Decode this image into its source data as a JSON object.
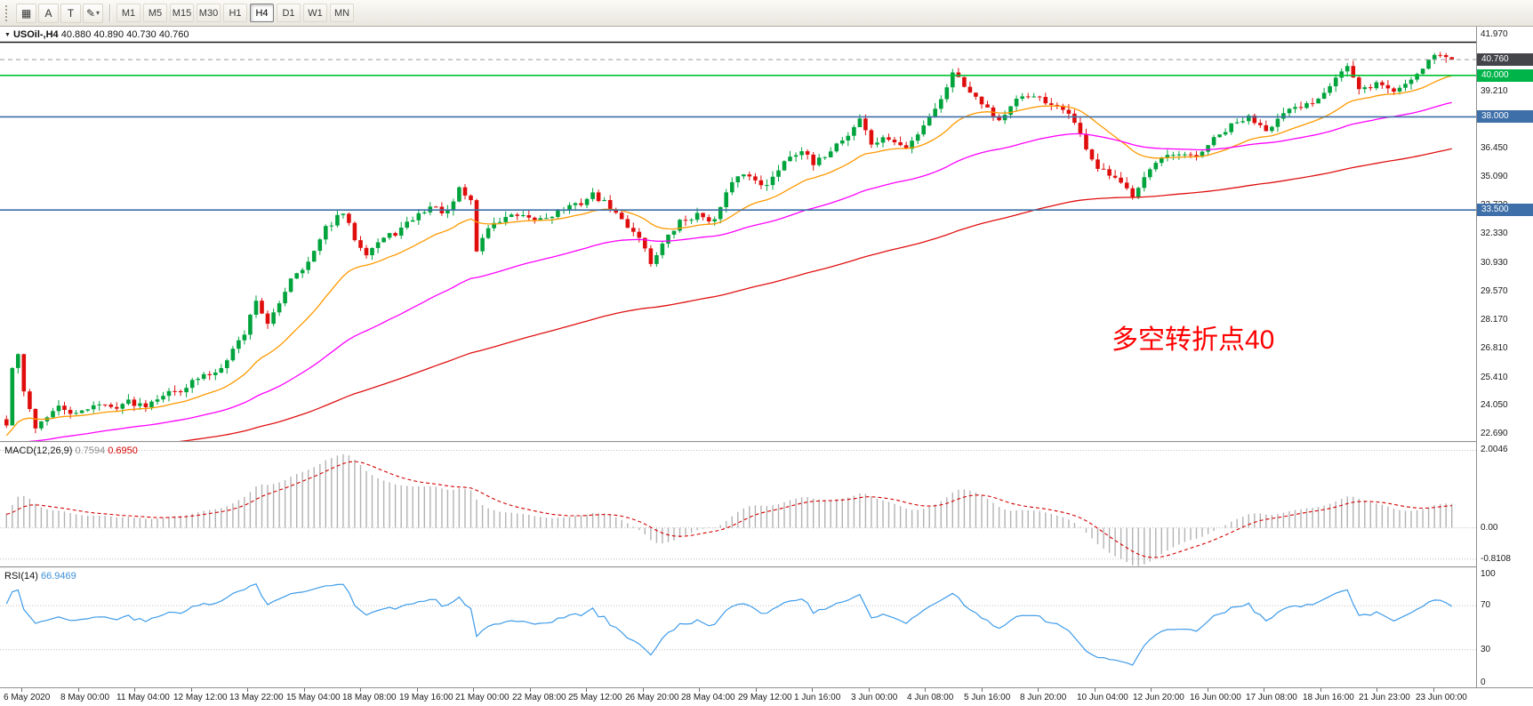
{
  "toolbar": {
    "buttons": [
      {
        "name": "chart-type-button",
        "glyph": "▦",
        "dropdown": false
      },
      {
        "name": "cursor-arrow-button",
        "glyph": "A",
        "dropdown": false
      },
      {
        "name": "text-label-button",
        "glyph": "T",
        "dropdown": false
      },
      {
        "name": "draw-tools-button",
        "glyph": "✎",
        "dropdown": true
      }
    ],
    "timeframes": [
      "M1",
      "M5",
      "M15",
      "M30",
      "H1",
      "H4",
      "D1",
      "W1",
      "MN"
    ],
    "active_timeframe": "H4"
  },
  "chart": {
    "title": "USOil-,H4",
    "ohlc": "40.880 40.890 40.730 40.760",
    "annotation": "多空转折点40",
    "annotation_color": "#ff0000"
  },
  "price_axis": {
    "ticks": [
      {
        "label": "41.970",
        "value": 41.97
      },
      {
        "label": "39.210",
        "value": 39.21
      },
      {
        "label": "37.850",
        "value": 37.85
      },
      {
        "label": "36.450",
        "value": 36.45
      },
      {
        "label": "35.090",
        "value": 35.09
      },
      {
        "label": "33.730",
        "value": 33.73
      },
      {
        "label": "32.330",
        "value": 32.33
      },
      {
        "label": "30.930",
        "value": 30.93
      },
      {
        "label": "29.570",
        "value": 29.57
      },
      {
        "label": "28.170",
        "value": 28.17
      },
      {
        "label": "26.810",
        "value": 26.81
      },
      {
        "label": "25.410",
        "value": 25.41
      },
      {
        "label": "24.050",
        "value": 24.05
      },
      {
        "label": "22.690",
        "value": 22.69
      }
    ],
    "badges": [
      {
        "value": "40.760",
        "price": 40.76,
        "bg": "#43454a",
        "type": "last-price"
      },
      {
        "value": "40.000",
        "price": 40.0,
        "bg": "#00b44a",
        "type": "hline"
      },
      {
        "value": "38.000",
        "price": 38.0,
        "bg": "#3e6fa8",
        "type": "hline"
      },
      {
        "value": "33.500",
        "price": 33.5,
        "bg": "#3e6fa8",
        "type": "hline"
      }
    ]
  },
  "hlines": [
    {
      "price": 41.6,
      "color": "#1c1c1c",
      "width": 1.4,
      "style": "solid"
    },
    {
      "price": 40.0,
      "color": "#00c235",
      "width": 1.6,
      "style": "solid"
    },
    {
      "price": 38.0,
      "color": "#3e6fa8",
      "width": 1.6,
      "style": "solid"
    },
    {
      "price": 33.5,
      "color": "#3e6fa8",
      "width": 1.6,
      "style": "solid"
    },
    {
      "price": 40.76,
      "color": "#9a9a9a",
      "width": 1.0,
      "style": "dashed"
    }
  ],
  "indicators": {
    "macd": {
      "label": "MACD(12,26,9)",
      "value_main": "0.7594",
      "value_signal": "0.6950",
      "levels": [
        2.0046,
        0,
        -0.8108
      ],
      "axis_labels": [
        "2.0046",
        "0.00",
        "-0.8108"
      ]
    },
    "rsi": {
      "label": "RSI(14)",
      "value": "66.9469",
      "levels": [
        70,
        30
      ],
      "axis_levels": [
        100,
        70,
        30,
        0
      ],
      "axis_labels": [
        "100",
        "70",
        "30",
        "0"
      ]
    }
  },
  "time_axis": {
    "labels": [
      "6 May 2020",
      "8 May 00:00",
      "11 May 04:00",
      "12 May 12:00",
      "13 May 22:00",
      "15 May 04:00",
      "18 May 08:00",
      "19 May 16:00",
      "21 May 00:00",
      "22 May 08:00",
      "25 May 12:00",
      "26 May 20:00",
      "28 May 04:00",
      "29 May 12:00",
      "1 Jun 16:00",
      "3 Jun 00:00",
      "4 Jun 08:00",
      "5 Jun 16:00",
      "8 Jun 20:00",
      "10 Jun 04:00",
      "12 Jun 20:00",
      "16 Jun 00:00",
      "17 Jun 08:00",
      "18 Jun 16:00",
      "21 Jun 23:00",
      "23 Jun 00:00"
    ]
  },
  "chart_data": {
    "type": "candlestick+indicators",
    "symbol": "USOil",
    "timeframe": "H4",
    "title": "USOil-,H4 40.880 40.890 40.730 40.760",
    "last_ohlc": {
      "open": 40.88,
      "high": 40.89,
      "low": 40.73,
      "close": 40.76
    },
    "price_range": {
      "min": 22.35,
      "max": 42.35
    },
    "candle_count": 250,
    "colors": {
      "up": "#00a33c",
      "down": "#e00d0d",
      "macd_bars": "#b2b2b2",
      "macd_signal": "#d40000",
      "rsi_line": "#3d9be9",
      "grid_dotted": "#bdbdbd"
    },
    "close_path_anchors": [
      [
        0,
        23.1
      ],
      [
        1,
        25.8
      ],
      [
        2,
        26.5
      ],
      [
        3,
        24.6
      ],
      [
        5,
        23.1
      ],
      [
        7,
        23.6
      ],
      [
        9,
        23.9
      ],
      [
        12,
        23.6
      ],
      [
        15,
        24.2
      ],
      [
        18,
        23.9
      ],
      [
        21,
        24.3
      ],
      [
        24,
        24.1
      ],
      [
        27,
        24.6
      ],
      [
        30,
        24.9
      ],
      [
        33,
        25.3
      ],
      [
        36,
        25.7
      ],
      [
        39,
        26.8
      ],
      [
        41,
        27.5
      ],
      [
        43,
        29.2
      ],
      [
        45,
        28.0
      ],
      [
        47,
        29.0
      ],
      [
        49,
        30.2
      ],
      [
        52,
        31.0
      ],
      [
        55,
        32.6
      ],
      [
        58,
        33.3
      ],
      [
        60,
        32.2
      ],
      [
        62,
        31.5
      ],
      [
        64,
        31.9
      ],
      [
        67,
        32.4
      ],
      [
        70,
        33.1
      ],
      [
        73,
        33.6
      ],
      [
        76,
        33.4
      ],
      [
        78,
        34.5
      ],
      [
        80,
        33.9
      ],
      [
        81,
        31.5
      ],
      [
        83,
        32.7
      ],
      [
        86,
        33.2
      ],
      [
        90,
        33.0
      ],
      [
        94,
        33.3
      ],
      [
        98,
        33.7
      ],
      [
        101,
        34.3
      ],
      [
        103,
        33.8
      ],
      [
        106,
        33.0
      ],
      [
        109,
        32.3
      ],
      [
        111,
        30.9
      ],
      [
        113,
        31.8
      ],
      [
        116,
        33.0
      ],
      [
        119,
        33.2
      ],
      [
        122,
        33.0
      ],
      [
        124,
        34.3
      ],
      [
        126,
        35.2
      ],
      [
        129,
        35.0
      ],
      [
        131,
        34.7
      ],
      [
        134,
        35.9
      ],
      [
        137,
        36.4
      ],
      [
        139,
        35.7
      ],
      [
        142,
        36.4
      ],
      [
        145,
        37.1
      ],
      [
        147,
        38.0
      ],
      [
        149,
        36.7
      ],
      [
        152,
        36.9
      ],
      [
        155,
        36.5
      ],
      [
        158,
        37.6
      ],
      [
        161,
        38.8
      ],
      [
        163,
        40.3
      ],
      [
        165,
        39.5
      ],
      [
        168,
        38.7
      ],
      [
        171,
        37.9
      ],
      [
        174,
        38.7
      ],
      [
        177,
        39.1
      ],
      [
        180,
        38.5
      ],
      [
        183,
        38.2
      ],
      [
        185,
        37.1
      ],
      [
        188,
        35.5
      ],
      [
        191,
        34.9
      ],
      [
        194,
        34.3
      ],
      [
        196,
        35.2
      ],
      [
        199,
        35.9
      ],
      [
        202,
        36.2
      ],
      [
        205,
        36.0
      ],
      [
        208,
        36.9
      ],
      [
        211,
        37.6
      ],
      [
        214,
        37.9
      ],
      [
        217,
        37.5
      ],
      [
        220,
        38.1
      ],
      [
        223,
        38.4
      ],
      [
        226,
        39.0
      ],
      [
        229,
        39.9
      ],
      [
        231,
        40.4
      ],
      [
        233,
        39.3
      ],
      [
        236,
        39.6
      ],
      [
        239,
        39.2
      ],
      [
        242,
        39.9
      ],
      [
        244,
        40.4
      ],
      [
        246,
        41.0
      ],
      [
        248,
        40.9
      ],
      [
        249,
        40.76
      ]
    ],
    "moving_averages": [
      {
        "period": 20,
        "color": "#ff9900"
      },
      {
        "period": 60,
        "color": "#ff00ff"
      },
      {
        "period": 150,
        "color": "#e01010"
      }
    ],
    "macd_scale": {
      "min": -1.0,
      "max": 2.2
    },
    "rsi_scale": {
      "min": 0,
      "max": 100
    }
  }
}
